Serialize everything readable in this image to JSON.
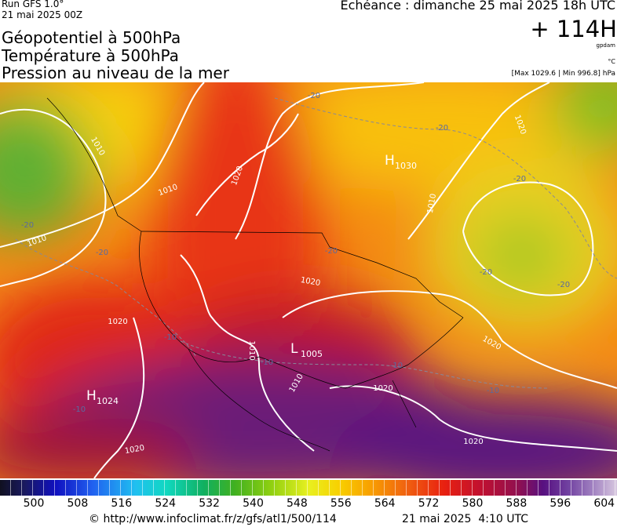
{
  "header": {
    "run": "Run GFS 1.0°",
    "date": "21 mai 2025 00Z",
    "titles": [
      "Géopotentiel à 500hPa",
      "Température à 500hPa",
      "Pression au niveau de la mer"
    ],
    "valid": "Echéance : dimanche 25 mai 2025 18h UTC",
    "lead": "+ 114H",
    "unit_geo": "gpdam",
    "unit_temp": "°C",
    "range": "[Max 1029.6 | Min 996.8] hPa"
  },
  "map": {
    "centers": [
      {
        "symbol": "H",
        "value": "1030"
      },
      {
        "symbol": "L",
        "value": "1005"
      },
      {
        "symbol": "H",
        "value": "1024"
      }
    ],
    "isobar_labels": [
      "1010",
      "1010",
      "1010",
      "1020",
      "1020",
      "1020",
      "1020",
      "1020",
      "1020",
      "1020",
      "1010",
      "1010",
      "1020",
      "1010"
    ],
    "temp_labels": [
      "-20",
      "-20",
      "-20",
      "-20",
      "-20",
      "-20",
      "-20",
      "-20",
      "-10",
      "-10",
      "-10",
      "-10",
      "-10"
    ]
  },
  "colorbar": {
    "labels": [
      500,
      508,
      516,
      524,
      532,
      540,
      548,
      556,
      564,
      572,
      580,
      588,
      596,
      604
    ]
  },
  "footer": {
    "url": "© http://www.infoclimat.fr/z/gfs/atl1/500/114",
    "time": "21 mai 2025  4:10 UTC"
  }
}
